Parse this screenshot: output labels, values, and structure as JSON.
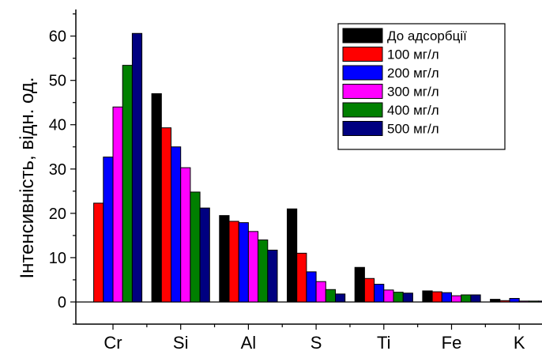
{
  "chart_data": {
    "type": "bar",
    "ylabel": "Інтенсивність, відн. од.",
    "xlabel": "",
    "categories": [
      "Cr",
      "Si",
      "Al",
      "S",
      "Ti",
      "Fe",
      "K"
    ],
    "ylim": [
      -5,
      66
    ],
    "yticks": [
      0,
      10,
      20,
      30,
      40,
      50,
      60
    ],
    "legend_position": "top-right",
    "grid": false,
    "series": [
      {
        "name": "До адсорбції",
        "color": "#000000",
        "values": [
          0,
          47.0,
          19.5,
          21.0,
          7.8,
          2.5,
          0.6
        ]
      },
      {
        "name": "100 мг/л",
        "color": "#ff0000",
        "values": [
          22.3,
          39.3,
          18.2,
          11.0,
          5.3,
          2.3,
          0.3
        ]
      },
      {
        "name": "200 мг/л",
        "color": "#0000ff",
        "values": [
          32.7,
          35.0,
          17.9,
          6.8,
          4.0,
          2.1,
          0.8
        ]
      },
      {
        "name": "300 мг/л",
        "color": "#ff00ff",
        "values": [
          44.0,
          30.3,
          15.9,
          4.6,
          2.7,
          1.4,
          0.2
        ]
      },
      {
        "name": "400 мг/л",
        "color": "#008000",
        "values": [
          53.4,
          24.8,
          14.0,
          2.8,
          2.2,
          1.6,
          0.2
        ]
      },
      {
        "name": "500 мг/л",
        "color": "#000080",
        "values": [
          60.6,
          21.2,
          11.7,
          1.8,
          2.0,
          1.6,
          0.2
        ]
      }
    ]
  }
}
